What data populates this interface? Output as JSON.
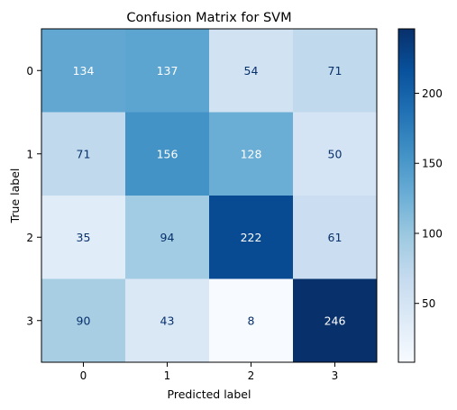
{
  "chart_data": {
    "type": "heatmap",
    "title": "Confusion Matrix for SVM",
    "xlabel": "Predicted label",
    "ylabel": "True label",
    "x_categories": [
      "0",
      "1",
      "2",
      "3"
    ],
    "y_categories": [
      "0",
      "1",
      "2",
      "3"
    ],
    "matrix": [
      [
        134,
        137,
        54,
        71
      ],
      [
        71,
        156,
        128,
        50
      ],
      [
        35,
        94,
        222,
        61
      ],
      [
        90,
        43,
        8,
        246
      ]
    ],
    "colormap": "Blues",
    "color_range": [
      8,
      246
    ],
    "colorbar_ticks": [
      50,
      100,
      150,
      200
    ],
    "colors": {
      "low": "#f7fbff",
      "high": "#08306b",
      "text_dark": "#08306b",
      "text_light": "#ffffff"
    },
    "grid": false
  }
}
